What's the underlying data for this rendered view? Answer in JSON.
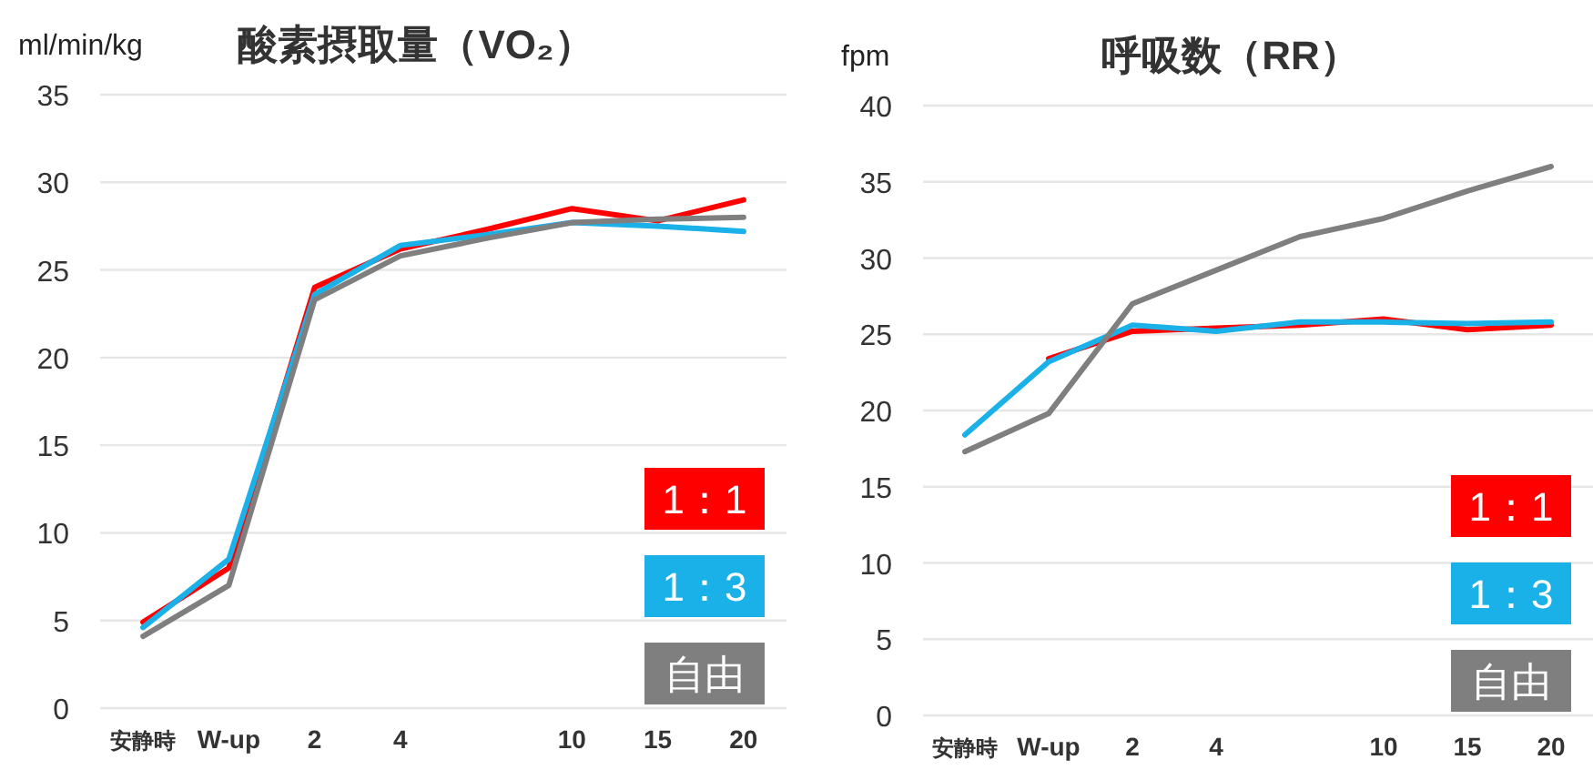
{
  "chart_data": [
    {
      "type": "line",
      "title": "酸素摂取量（VO₂）",
      "ylabel": "ml/min/kg",
      "categories": [
        "安静時",
        "W-up",
        "2",
        "4",
        null,
        "10",
        "15",
        "20"
      ],
      "ylim": [
        0,
        35
      ],
      "yticks": [
        0,
        5,
        10,
        15,
        20,
        25,
        30,
        35
      ],
      "grid": "y",
      "legend": "bottom right",
      "series": [
        {
          "name": "1：1",
          "color": "#ff0000",
          "values": [
            4.9,
            8.0,
            24.0,
            26.2,
            27.3,
            28.5,
            27.8,
            29.0
          ]
        },
        {
          "name": "1：3",
          "color": "#1ab0e8",
          "values": [
            4.6,
            8.5,
            23.6,
            26.4,
            27.0,
            27.7,
            27.5,
            27.2
          ]
        },
        {
          "name": "自由",
          "color": "#7f7f7f",
          "values": [
            4.1,
            7.0,
            23.3,
            25.8,
            26.8,
            27.7,
            27.9,
            28.0
          ]
        }
      ]
    },
    {
      "type": "line",
      "title": "呼吸数（RR）",
      "ylabel": "fpm",
      "categories": [
        "安静時",
        "W-up",
        "2",
        "4",
        null,
        "10",
        "15",
        "20"
      ],
      "ylim": [
        0,
        40
      ],
      "yticks": [
        0,
        5,
        10,
        15,
        20,
        25,
        30,
        35,
        40
      ],
      "grid": "y",
      "legend": "bottom right",
      "series": [
        {
          "name": "1：1",
          "color": "#ff0000",
          "values": [
            null,
            23.4,
            25.2,
            25.4,
            25.6,
            26.0,
            25.3,
            25.6
          ]
        },
        {
          "name": "1：3",
          "color": "#1ab0e8",
          "values": [
            18.4,
            23.2,
            25.6,
            25.2,
            25.8,
            25.8,
            25.7,
            25.8
          ]
        },
        {
          "name": "自由",
          "color": "#7f7f7f",
          "values": [
            17.3,
            19.8,
            27.0,
            29.2,
            31.4,
            32.6,
            34.4,
            36.0
          ]
        }
      ]
    }
  ]
}
